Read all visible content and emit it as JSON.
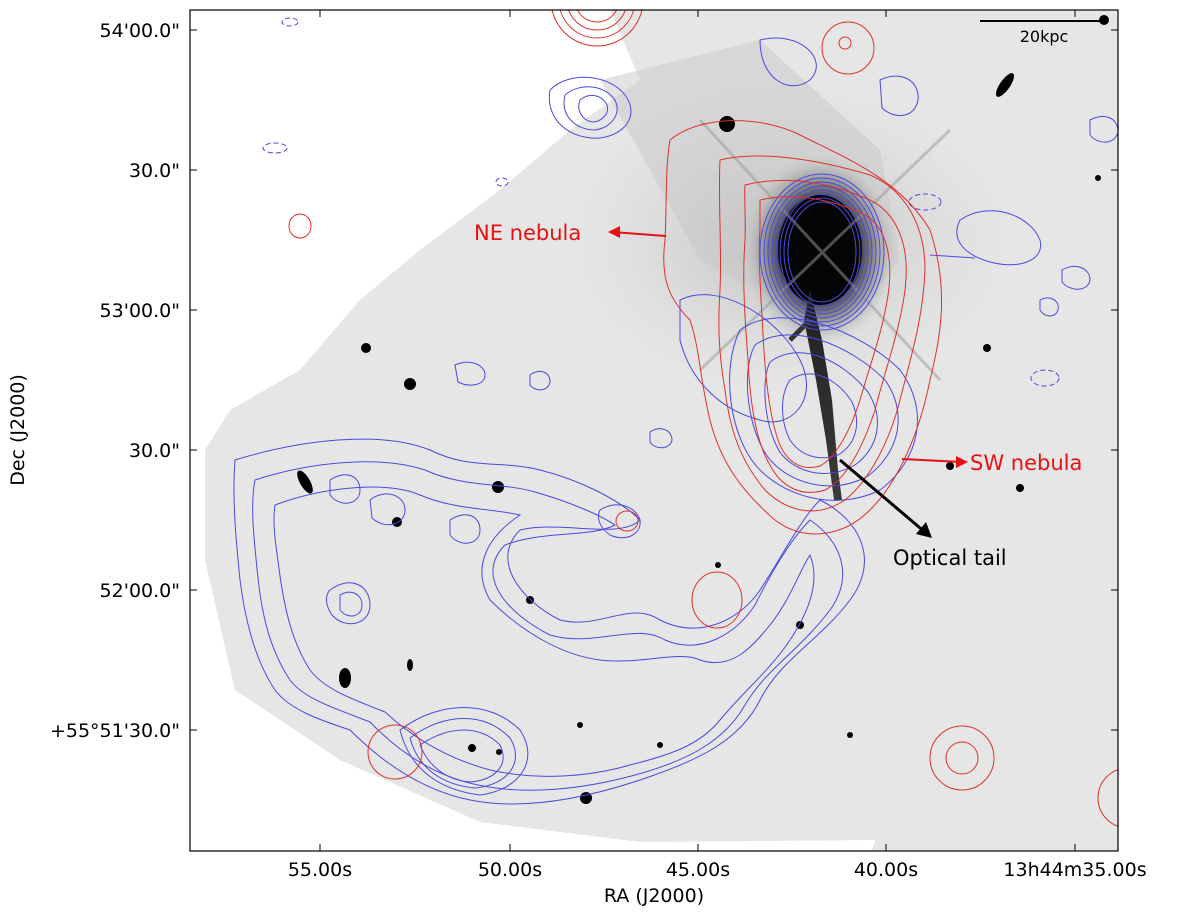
{
  "figure": {
    "axes": {
      "x_label": "RA (J2000)",
      "y_label": "Dec (J2000)",
      "x_ticks": [
        "55.00s",
        "50.00s",
        "45.00s",
        "40.00s",
        "13h44m35.00s"
      ],
      "y_ticks": [
        "54'00.0\"",
        "30.0\"",
        "53'00.0\"",
        "30.0\"",
        "52'00.0\"",
        "+55°51'30.0\""
      ]
    },
    "scale_bar": {
      "label": "20kpc"
    },
    "annotations": {
      "ne_nebula": "NE nebula",
      "sw_nebula": "SW nebula",
      "optical_tail": "Optical tail"
    },
    "colors": {
      "red_contour": "#e0302a",
      "blue_contour": "#4a4ae0",
      "annotation_red": "#e81010",
      "annotation_black": "#000000"
    }
  }
}
